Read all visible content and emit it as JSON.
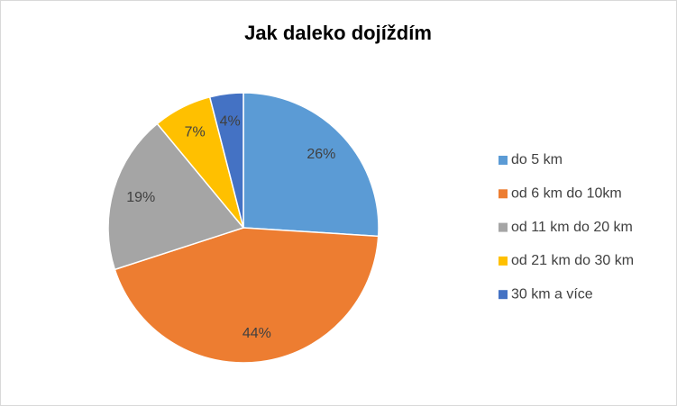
{
  "chart_data": {
    "type": "pie",
    "title": "Jak daleko dojíždím",
    "categories": [
      "do 5 km",
      "od 6 km do 10km",
      "od 11 km do 20 km",
      "od 21 km do 30 km",
      "30 km a více"
    ],
    "values": [
      26,
      44,
      19,
      7,
      4
    ],
    "value_labels": [
      "26%",
      "44%",
      "19%",
      "7%",
      "4%"
    ],
    "colors": [
      "#5b9bd5",
      "#ed7d31",
      "#a5a5a5",
      "#ffc000",
      "#4472c4"
    ],
    "legend": "right"
  }
}
